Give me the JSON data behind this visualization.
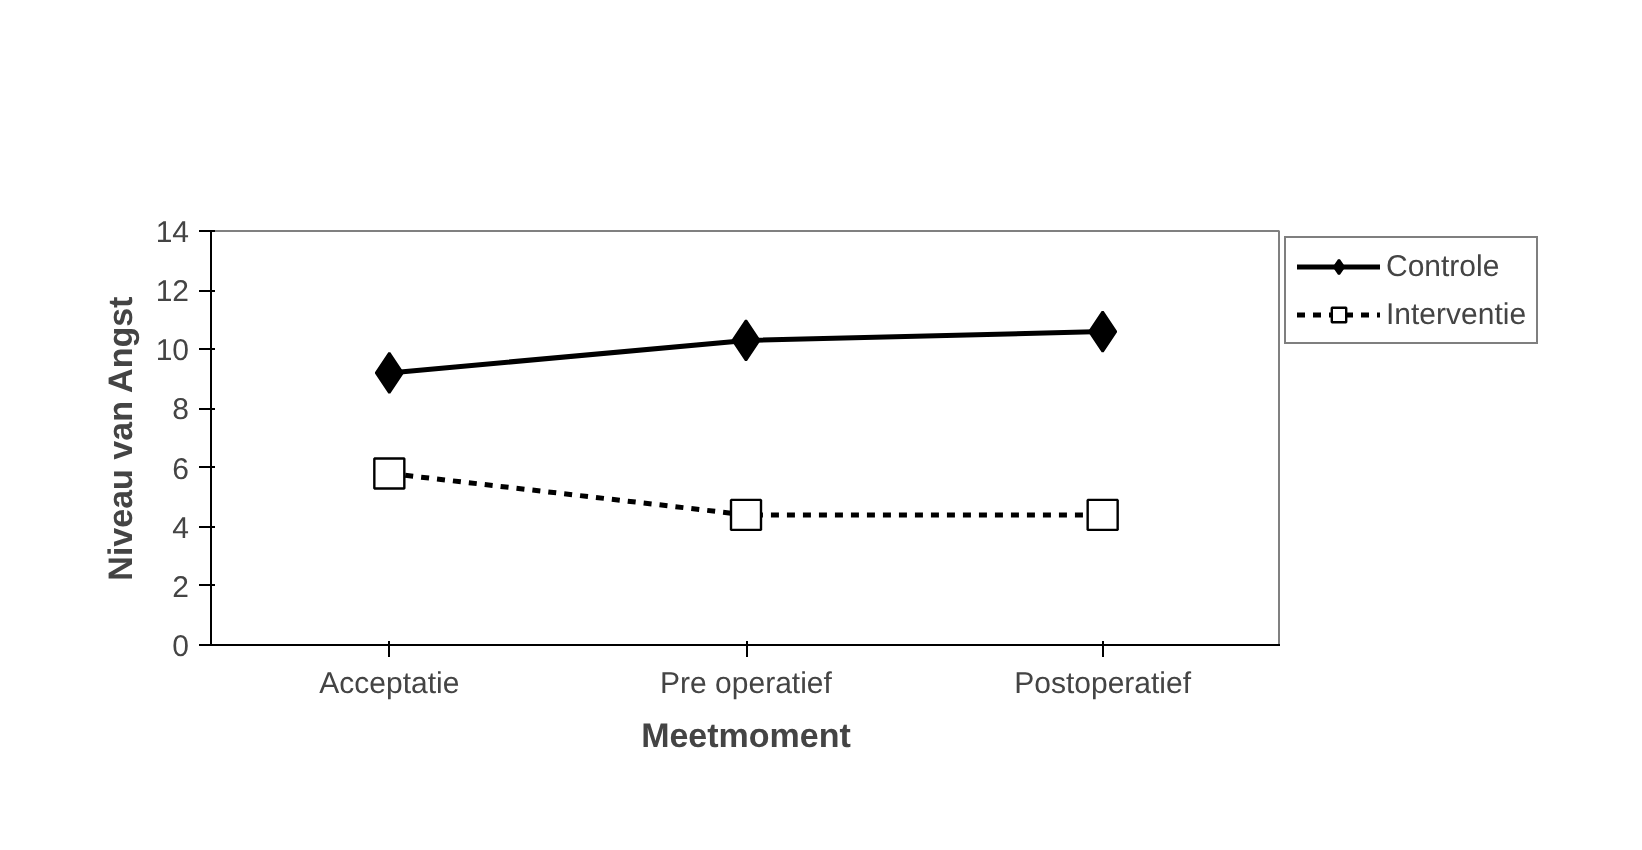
{
  "chart_data": {
    "type": "line",
    "xlabel": "Meetmoment",
    "ylabel": "Niveau van Angst",
    "categories": [
      "Acceptatie",
      "Pre operatief",
      "Postoperatief"
    ],
    "series": [
      {
        "name": "Controle",
        "color": "#000000",
        "values": [
          9.2,
          10.3,
          10.6
        ],
        "marker": "diamond",
        "line_style": "solid"
      },
      {
        "name": "Interventie",
        "color": "#000000",
        "values": [
          5.8,
          4.4,
          4.4
        ],
        "marker": "square",
        "line_style": "dashed"
      }
    ],
    "ylim": [
      0,
      14
    ],
    "yticks": [
      0,
      2,
      4,
      6,
      8,
      10,
      12,
      14
    ],
    "grid": false,
    "legend": "right"
  }
}
